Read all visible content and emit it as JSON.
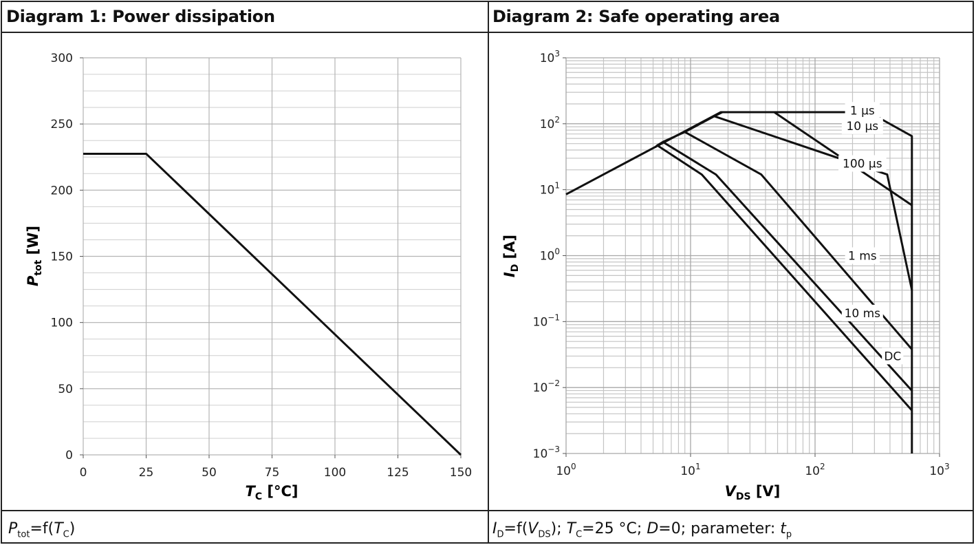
{
  "panel_left": {
    "title": "Diagram 1: Power dissipation",
    "caption": {
      "sym": "P",
      "sub": "tot",
      "eq": "=f(",
      "sym2": "T",
      "sub2": "C",
      "end": ")"
    }
  },
  "panel_right": {
    "title": "Diagram 2: Safe operating area",
    "caption": {
      "i1": "I",
      "s1": "D",
      "t1": "=f(",
      "i2": "V",
      "s2": "DS",
      "t2": "); ",
      "i3": "T",
      "s3": "C",
      "t3": "=25 °C; ",
      "i4": "D",
      "t4": "=0; parameter: ",
      "i5": "t",
      "s5": "p"
    }
  },
  "chart_data": [
    {
      "type": "line",
      "title": "Diagram 1: Power dissipation",
      "xlabel": {
        "sym": "T",
        "sub": "C",
        "unit": " [°C]"
      },
      "ylabel": {
        "sym": "P",
        "sub": "tot",
        "unit": " [W]"
      },
      "xlim": [
        0,
        150
      ],
      "ylim": [
        0,
        300
      ],
      "xticks": [
        "0",
        "25",
        "50",
        "75",
        "100",
        "125",
        "150"
      ],
      "yticks": [
        "0",
        "50",
        "100",
        "150",
        "200",
        "250",
        "300"
      ],
      "grid": true,
      "series": [
        {
          "x": [
            0,
            25,
            150
          ],
          "y": [
            227.5,
            227.5,
            0
          ]
        }
      ]
    },
    {
      "type": "line",
      "title": "Diagram 2: Safe operating area",
      "xscale": "log",
      "yscale": "log",
      "xlabel": {
        "sym": "V",
        "sub": "DS",
        "unit": " [V]"
      },
      "ylabel": {
        "sym": "I",
        "sub": "D",
        "unit": " [A]"
      },
      "xlim": [
        1,
        1000
      ],
      "ylim": [
        0.001,
        1000
      ],
      "xticks": [
        {
          "base": "10",
          "exp": "0"
        },
        {
          "base": "10",
          "exp": "1"
        },
        {
          "base": "10",
          "exp": "2"
        },
        {
          "base": "10",
          "exp": "3"
        }
      ],
      "yticks": [
        {
          "base": "10",
          "exp": "−3"
        },
        {
          "base": "10",
          "exp": "−2"
        },
        {
          "base": "10",
          "exp": "−1"
        },
        {
          "base": "10",
          "exp": "0"
        },
        {
          "base": "10",
          "exp": "1"
        },
        {
          "base": "10",
          "exp": "2"
        },
        {
          "base": "10",
          "exp": "3"
        }
      ],
      "grid": true,
      "series": [
        {
          "name": "1 µs",
          "x": [
            1,
            17.5,
            270,
            600,
            600
          ],
          "y": [
            8.5,
            150,
            150,
            65,
            0.001
          ]
        },
        {
          "name": "10 µs",
          "x": [
            15.5,
            18,
            47,
            600
          ],
          "y": [
            130,
            150,
            150,
            5.8
          ]
        },
        {
          "name": "100 µs",
          "x": [
            9,
            15.5,
            380,
            600
          ],
          "y": [
            75,
            130,
            17,
            0.3
          ]
        },
        {
          "name": "1 ms",
          "x": [
            6,
            9,
            37,
            600
          ],
          "y": [
            53,
            75,
            17,
            0.038
          ]
        },
        {
          "name": "10 ms",
          "x": [
            5.4,
            6,
            16,
            600
          ],
          "y": [
            47,
            53,
            17,
            0.009
          ]
        },
        {
          "name": "DC",
          "x": [
            5.2,
            5.4,
            12.3,
            600
          ],
          "y": [
            44,
            47,
            17,
            0.0045
          ]
        }
      ],
      "annotations": [
        {
          "text": "1 µs",
          "x": 240,
          "y": 160
        },
        {
          "text": "10 µs",
          "x": 240,
          "y": 93
        },
        {
          "text": "100 µs",
          "x": 240,
          "y": 25
        },
        {
          "text": "1 ms",
          "x": 240,
          "y": 1.0
        },
        {
          "text": "10 ms",
          "x": 240,
          "y": 0.135
        },
        {
          "text": "DC",
          "x": 420,
          "y": 0.03
        }
      ]
    }
  ]
}
